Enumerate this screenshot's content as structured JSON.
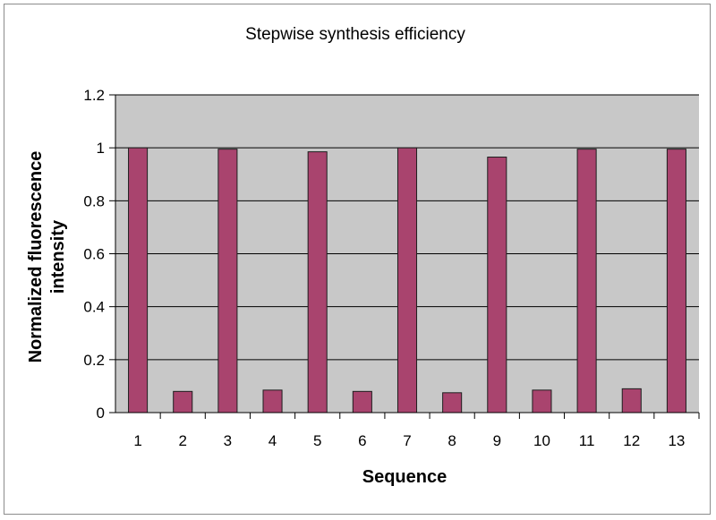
{
  "chart_data": {
    "type": "bar",
    "title": "Stepwise synthesis efficiency",
    "xlabel": "Sequence",
    "ylabel_lines": [
      "Normalized fluorescence",
      "intensity"
    ],
    "categories": [
      "1",
      "2",
      "3",
      "4",
      "5",
      "6",
      "7",
      "8",
      "9",
      "10",
      "11",
      "12",
      "13"
    ],
    "values": [
      1.0,
      0.08,
      0.995,
      0.085,
      0.985,
      0.08,
      1.0,
      0.075,
      0.965,
      0.085,
      0.995,
      0.09,
      0.995
    ],
    "ylim": [
      0,
      1.2
    ],
    "yticks": [
      "0",
      "0.2",
      "0.4",
      "0.6",
      "0.8",
      "1",
      "1.2"
    ],
    "ytick_values": [
      0,
      0.2,
      0.4,
      0.6,
      0.8,
      1.0,
      1.2
    ],
    "grid": true,
    "legend": "none",
    "colors": {
      "bar_fill": "#a9446e",
      "bar_stroke": "#1e1e1e",
      "plot_bg": "#c8c8c8",
      "grid": "#000000"
    }
  }
}
